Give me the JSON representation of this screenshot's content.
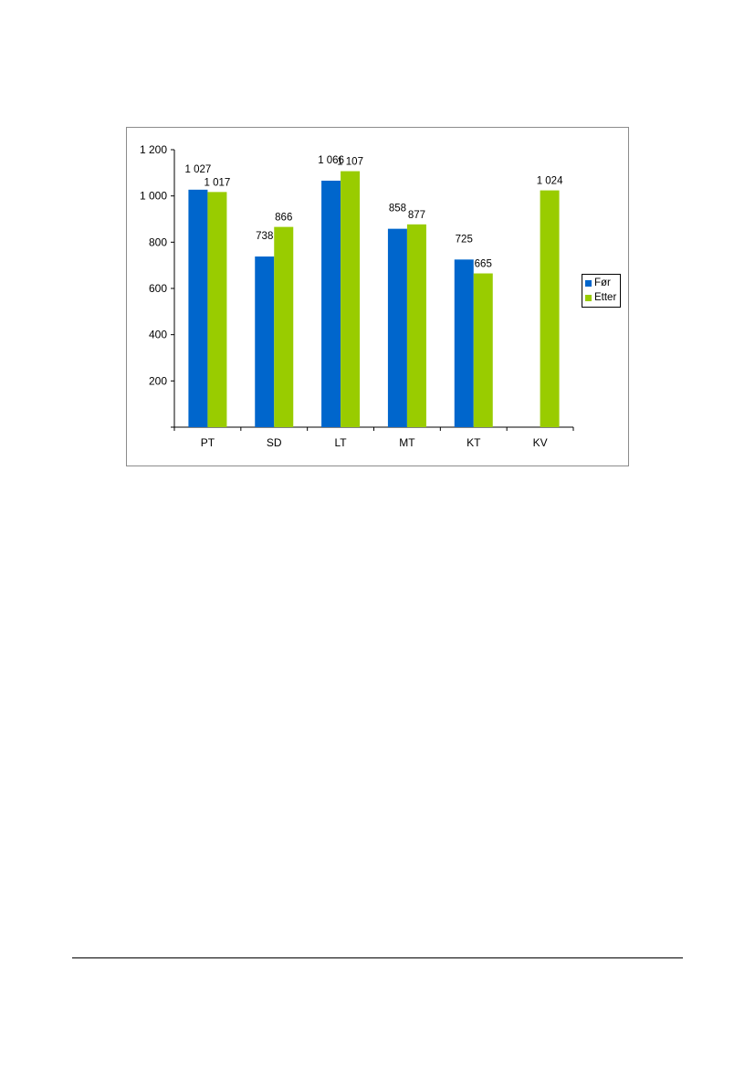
{
  "chart_data": {
    "type": "bar",
    "categories": [
      "PT",
      "SD",
      "LT",
      "MT",
      "KT",
      "KV"
    ],
    "series": [
      {
        "name": "Før",
        "color": "#0066cc",
        "values": [
          1027,
          738,
          1066,
          858,
          725,
          null
        ],
        "labels": [
          "1 027",
          "738",
          "1 066",
          "858",
          "725",
          ""
        ]
      },
      {
        "name": "Etter",
        "color": "#99cc00",
        "values": [
          1017,
          866,
          1107,
          877,
          665,
          1024
        ],
        "labels": [
          "1 017",
          "866",
          "1 107",
          "877",
          "665",
          "1 024"
        ]
      }
    ],
    "ylim": [
      0,
      1200
    ],
    "yticks": [
      200,
      400,
      600,
      800,
      1000,
      1200
    ],
    "ytick_labels": [
      "200",
      "400",
      "600",
      "800",
      "1 000",
      "1 200"
    ],
    "legend": "right",
    "grid": false
  }
}
